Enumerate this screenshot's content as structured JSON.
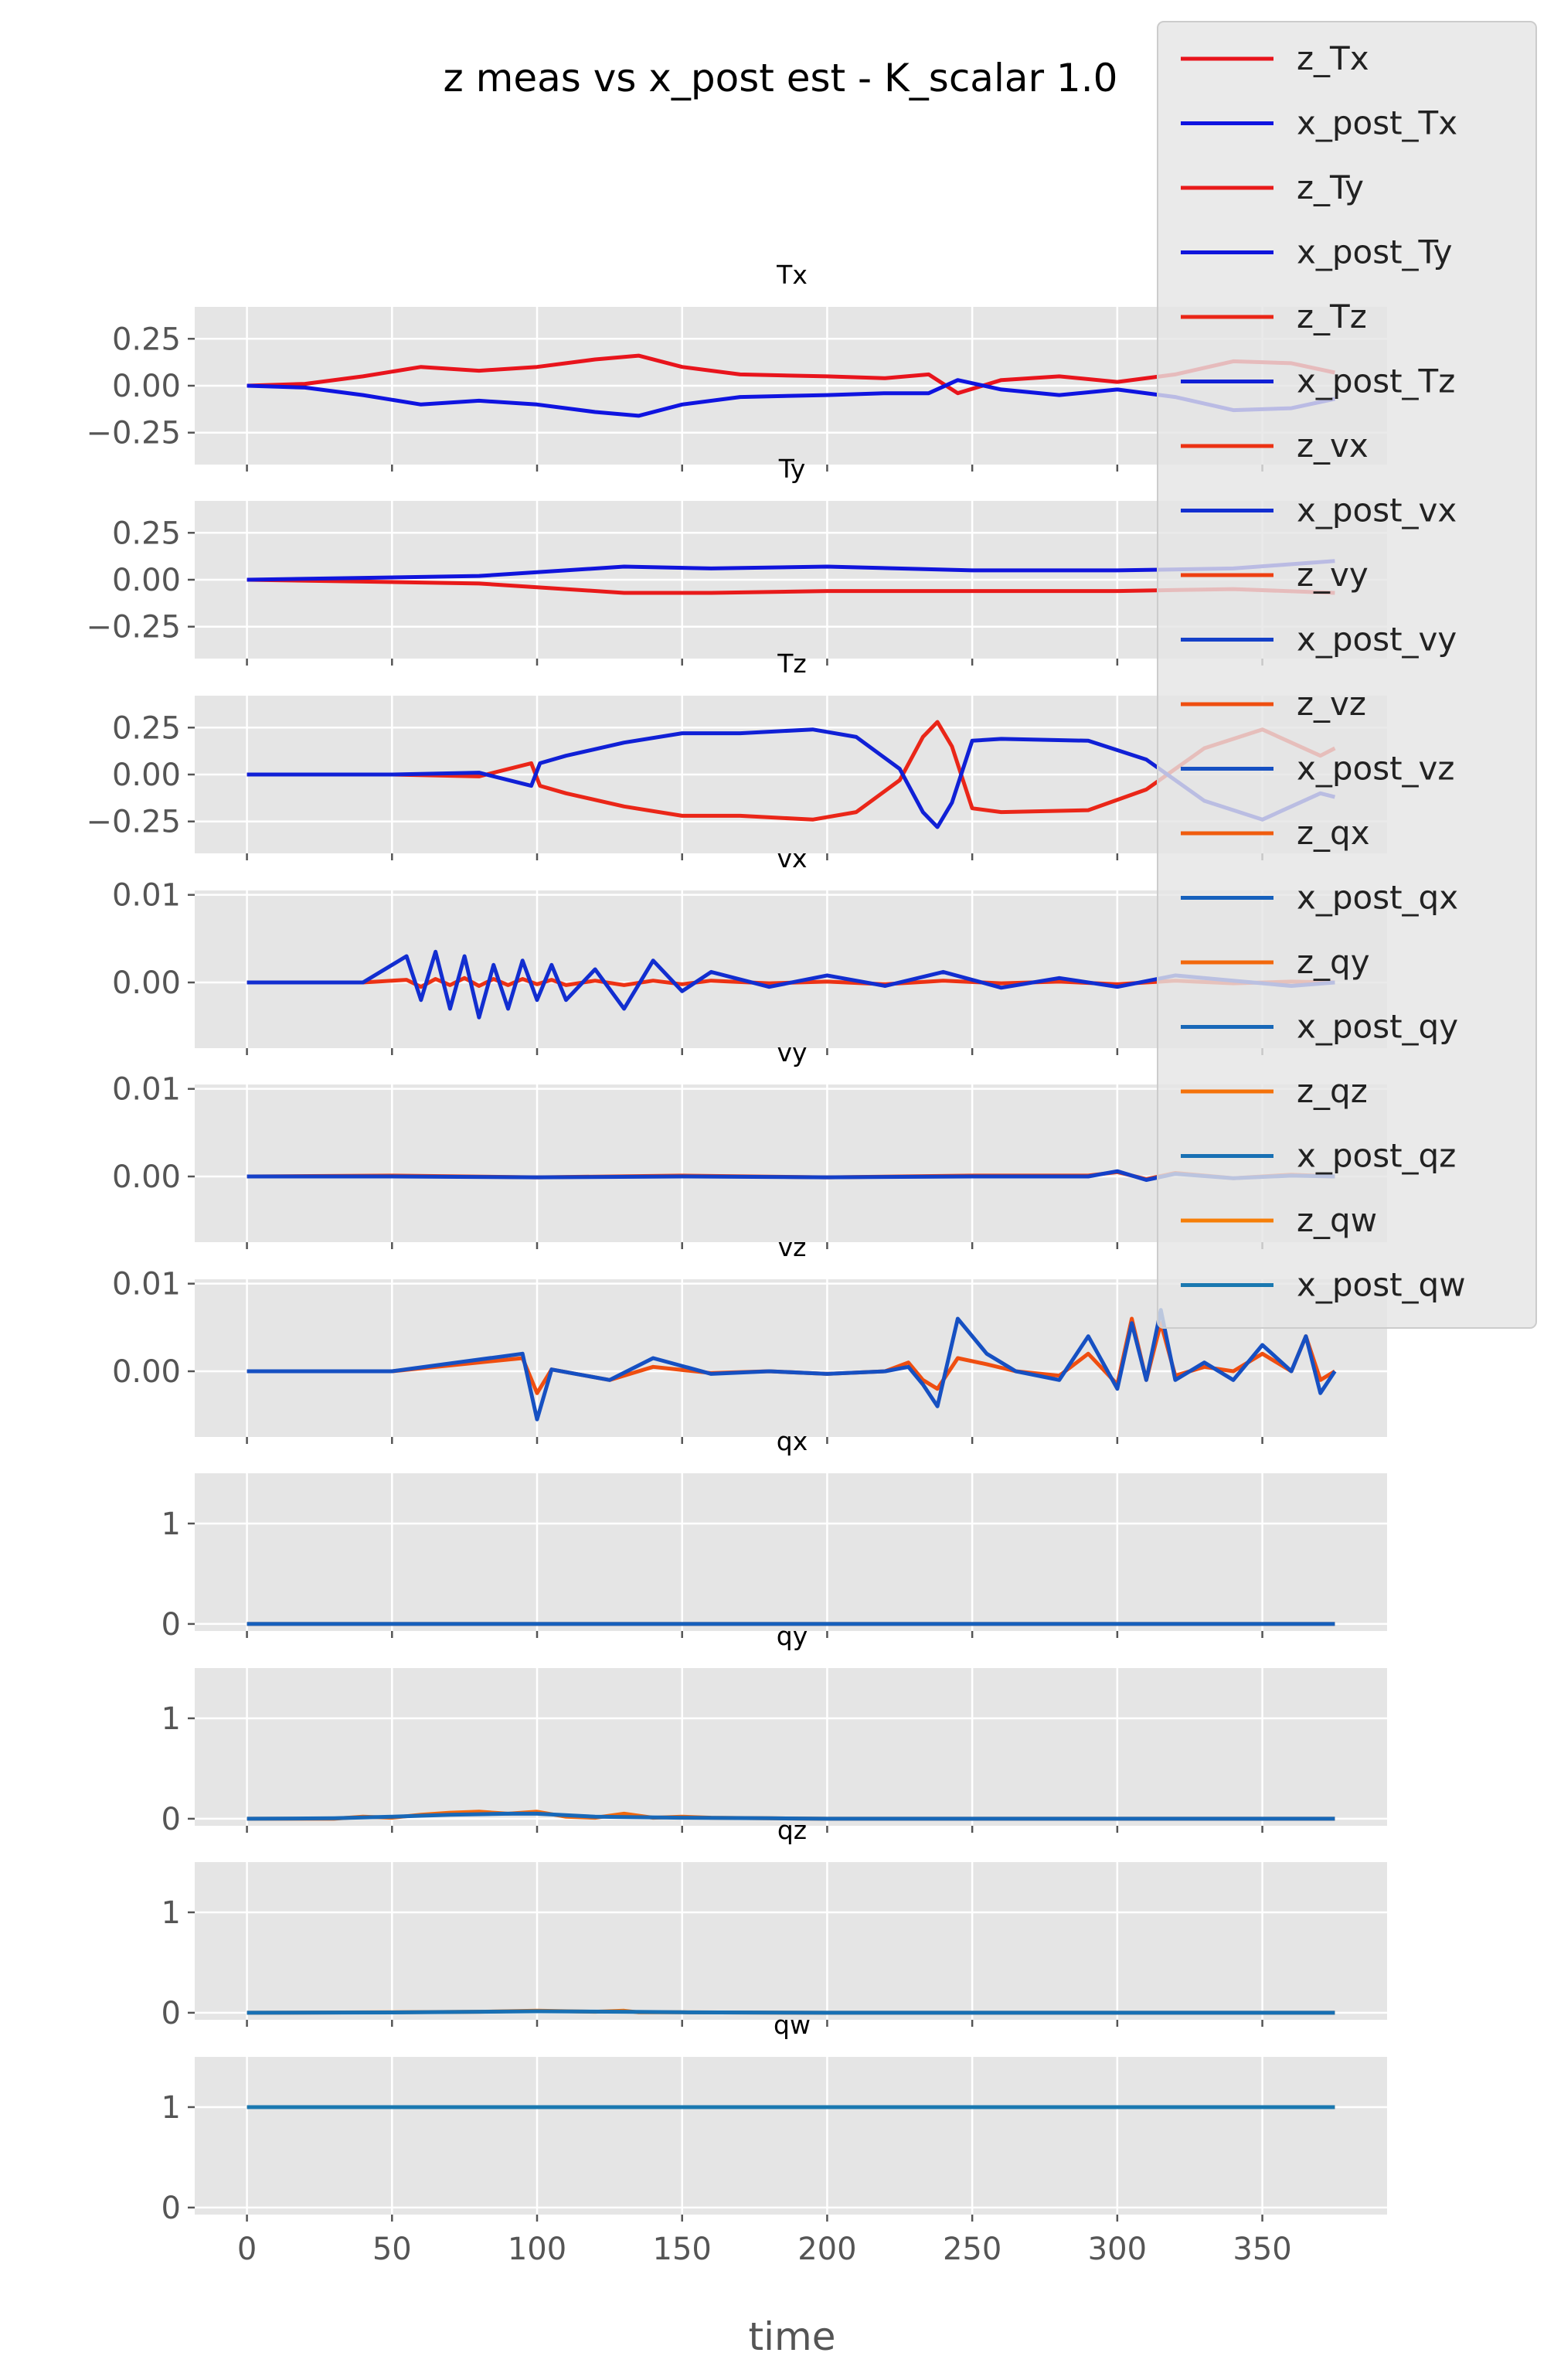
{
  "chart_data": {
    "type": "line",
    "title": "z meas vs x_post est - K_scalar 1.0",
    "xlabel": "time",
    "xlim": [
      -18,
      393
    ],
    "xticks": [
      0,
      50,
      100,
      150,
      200,
      250,
      300,
      350
    ],
    "grid": true,
    "legend_position": "top-right",
    "colors": {
      "background": "#e5e5e5",
      "grid": "#ffffff",
      "z_Tx": "#e8141c",
      "x_post_Tx": "#0f14e0",
      "z_Ty": "#e81a1a",
      "x_post_Ty": "#1014dc",
      "z_Tz": "#ea2618",
      "x_post_Tz": "#1020d6",
      "z_vx": "#ec3214",
      "x_post_vx": "#122ed0",
      "z_vy": "#ee4012",
      "x_post_vy": "#1440c8",
      "z_vz": "#ef4e10",
      "x_post_vz": "#1650c2",
      "z_qx": "#f05c0e",
      "x_post_qx": "#1660bc",
      "z_qy": "#f2680c",
      "x_post_qy": "#1868b8",
      "z_qz": "#f4720a",
      "x_post_qz": "#1870b4",
      "z_qw": "#f67e08",
      "x_post_qw": "#1a78b0"
    },
    "legend": [
      "z_Tx",
      "x_post_Tx",
      "z_Ty",
      "x_post_Ty",
      "z_Tz",
      "x_post_Tz",
      "z_vx",
      "x_post_vx",
      "z_vy",
      "x_post_vy",
      "z_vz",
      "x_post_vz",
      "z_qx",
      "x_post_qx",
      "z_qy",
      "x_post_qy",
      "z_qz",
      "x_post_qz",
      "z_qw",
      "x_post_qw"
    ],
    "panels": [
      {
        "title": "Tx",
        "ylim": [
          -0.42,
          0.42
        ],
        "yticks": [
          0.25,
          0.0,
          -0.25
        ],
        "ytick_labels": [
          "0.25",
          "0.00",
          "−0.25"
        ],
        "series": [
          {
            "name": "z_Tx",
            "x": [
              0,
              20,
              40,
              60,
              80,
              100,
              120,
              135,
              150,
              170,
              200,
              220,
              235,
              245,
              260,
              280,
              300,
              320,
              340,
              360,
              375
            ],
            "y": [
              0.0,
              0.01,
              0.05,
              0.1,
              0.08,
              0.1,
              0.14,
              0.16,
              0.1,
              0.06,
              0.05,
              0.04,
              0.06,
              -0.04,
              0.03,
              0.05,
              0.02,
              0.06,
              0.13,
              0.12,
              0.07
            ]
          },
          {
            "name": "x_post_Tx",
            "x": [
              0,
              20,
              40,
              60,
              80,
              100,
              120,
              135,
              150,
              170,
              200,
              220,
              235,
              245,
              260,
              280,
              300,
              320,
              340,
              360,
              375
            ],
            "y": [
              0.0,
              -0.01,
              -0.05,
              -0.1,
              -0.08,
              -0.1,
              -0.14,
              -0.16,
              -0.1,
              -0.06,
              -0.05,
              -0.04,
              -0.04,
              0.03,
              -0.02,
              -0.05,
              -0.02,
              -0.06,
              -0.13,
              -0.12,
              -0.07
            ]
          }
        ]
      },
      {
        "title": "Ty",
        "ylim": [
          -0.42,
          0.42
        ],
        "yticks": [
          0.25,
          0.0,
          -0.25
        ],
        "ytick_labels": [
          "0.25",
          "0.00",
          "−0.25"
        ],
        "series": [
          {
            "name": "z_Ty",
            "x": [
              0,
              40,
              80,
              100,
              130,
              160,
              200,
              250,
              300,
              340,
              375
            ],
            "y": [
              0.0,
              -0.01,
              -0.02,
              -0.04,
              -0.07,
              -0.07,
              -0.06,
              -0.06,
              -0.06,
              -0.05,
              -0.07
            ]
          },
          {
            "name": "x_post_Ty",
            "x": [
              0,
              40,
              80,
              100,
              130,
              160,
              200,
              250,
              300,
              340,
              375
            ],
            "y": [
              0.0,
              0.01,
              0.02,
              0.04,
              0.07,
              0.06,
              0.07,
              0.05,
              0.05,
              0.06,
              0.1
            ]
          }
        ]
      },
      {
        "title": "Tz",
        "ylim": [
          -0.42,
          0.42
        ],
        "yticks": [
          0.25,
          0.0,
          -0.25
        ],
        "ytick_labels": [
          "0.25",
          "0.00",
          "−0.25"
        ],
        "series": [
          {
            "name": "z_Tz",
            "x": [
              0,
              50,
              80,
              98,
              101,
              110,
              130,
              150,
              170,
              195,
              210,
              225,
              233,
              238,
              243,
              250,
              260,
              290,
              310,
              330,
              350,
              370,
              375
            ],
            "y": [
              0.0,
              0.0,
              -0.01,
              0.06,
              -0.06,
              -0.1,
              -0.17,
              -0.22,
              -0.22,
              -0.24,
              -0.2,
              -0.03,
              0.2,
              0.28,
              0.15,
              -0.18,
              -0.2,
              -0.19,
              -0.08,
              0.14,
              0.24,
              0.1,
              0.14
            ]
          },
          {
            "name": "x_post_Tz",
            "x": [
              0,
              50,
              80,
              98,
              101,
              110,
              130,
              150,
              170,
              195,
              210,
              225,
              233,
              238,
              243,
              250,
              260,
              290,
              310,
              330,
              350,
              370,
              375
            ],
            "y": [
              0.0,
              0.0,
              0.01,
              -0.06,
              0.06,
              0.1,
              0.17,
              0.22,
              0.22,
              0.24,
              0.2,
              0.03,
              -0.2,
              -0.28,
              -0.15,
              0.18,
              0.19,
              0.18,
              0.08,
              -0.14,
              -0.24,
              -0.1,
              -0.12
            ]
          }
        ]
      },
      {
        "title": "vx",
        "ylim": [
          -0.0075,
          0.0105
        ],
        "yticks": [
          0.01,
          0.0
        ],
        "ytick_labels": [
          "0.01",
          "0.00"
        ],
        "series": [
          {
            "name": "z_vx",
            "x": [
              0,
              40,
              55,
              60,
              65,
              70,
              75,
              80,
              85,
              90,
              95,
              100,
              105,
              110,
              120,
              130,
              140,
              150,
              160,
              180,
              200,
              220,
              240,
              260,
              280,
              300,
              320,
              340,
              360,
              375
            ],
            "y": [
              0.0,
              0.0,
              0.0003,
              -0.0005,
              0.0004,
              -0.0003,
              0.0005,
              -0.0004,
              0.0004,
              -0.0003,
              0.0004,
              -0.0002,
              0.0003,
              -0.0003,
              0.0002,
              -0.0003,
              0.0002,
              -0.0002,
              0.0002,
              -0.0001,
              0.0001,
              -0.0002,
              0.0002,
              -0.0001,
              0.0001,
              -0.0002,
              0.0002,
              -0.0001,
              0.0001,
              0.0
            ]
          },
          {
            "name": "x_post_vx",
            "x": [
              0,
              40,
              55,
              60,
              65,
              70,
              75,
              80,
              85,
              90,
              95,
              100,
              105,
              110,
              120,
              130,
              140,
              150,
              160,
              180,
              200,
              220,
              240,
              260,
              280,
              300,
              320,
              340,
              360,
              375
            ],
            "y": [
              0.0,
              0.0,
              0.003,
              -0.002,
              0.0035,
              -0.003,
              0.003,
              -0.004,
              0.002,
              -0.003,
              0.0025,
              -0.002,
              0.002,
              -0.002,
              0.0015,
              -0.003,
              0.0025,
              -0.001,
              0.0012,
              -0.0005,
              0.0008,
              -0.0004,
              0.0012,
              -0.0006,
              0.0005,
              -0.0005,
              0.0008,
              0.0002,
              -0.0004,
              0.0
            ]
          }
        ]
      },
      {
        "title": "vy",
        "ylim": [
          -0.0075,
          0.0105
        ],
        "yticks": [
          0.01,
          0.0
        ],
        "ytick_labels": [
          "0.01",
          "0.00"
        ],
        "series": [
          {
            "name": "z_vy",
            "x": [
              0,
              50,
              100,
              150,
              200,
              250,
              290,
              300,
              310,
              320,
              340,
              360,
              375
            ],
            "y": [
              0.0,
              0.0001,
              -0.0001,
              0.0001,
              -0.0001,
              0.0001,
              0.0001,
              0.0005,
              -0.0003,
              0.0004,
              -0.0002,
              0.0002,
              0.0
            ]
          },
          {
            "name": "x_post_vy",
            "x": [
              0,
              50,
              100,
              150,
              200,
              250,
              290,
              300,
              310,
              320,
              340,
              360,
              375
            ],
            "y": [
              0.0,
              0.0,
              -0.0001,
              0.0,
              -0.0001,
              0.0,
              0.0,
              0.0006,
              -0.0004,
              0.0003,
              -0.0002,
              0.0001,
              0.0
            ]
          }
        ]
      },
      {
        "title": "vz",
        "ylim": [
          -0.0075,
          0.0105
        ],
        "yticks": [
          0.01,
          0.0
        ],
        "ytick_labels": [
          "0.01",
          "0.00"
        ],
        "series": [
          {
            "name": "z_vz",
            "x": [
              0,
              50,
              95,
              100,
              105,
              125,
              140,
              160,
              180,
              200,
              220,
              228,
              233,
              238,
              245,
              255,
              265,
              280,
              290,
              300,
              305,
              310,
              315,
              320,
              330,
              340,
              350,
              360,
              365,
              370,
              375
            ],
            "y": [
              0.0,
              0.0,
              0.0015,
              -0.0025,
              0.0002,
              -0.001,
              0.0005,
              -0.0002,
              0.0,
              -0.0003,
              0.0,
              0.001,
              -0.001,
              -0.002,
              0.0015,
              0.0008,
              0.0,
              -0.0005,
              0.002,
              -0.0015,
              0.006,
              -0.001,
              0.0055,
              -0.0005,
              0.0005,
              0.0,
              0.002,
              0.0,
              0.004,
              -0.001,
              0.0
            ]
          },
          {
            "name": "x_post_vz",
            "x": [
              0,
              50,
              95,
              100,
              105,
              125,
              140,
              160,
              180,
              200,
              220,
              228,
              233,
              238,
              245,
              255,
              265,
              280,
              290,
              300,
              305,
              310,
              315,
              320,
              330,
              340,
              350,
              360,
              365,
              370,
              375
            ],
            "y": [
              0.0,
              0.0,
              0.002,
              -0.0055,
              0.0002,
              -0.001,
              0.0015,
              -0.0003,
              0.0,
              -0.0003,
              0.0,
              0.0005,
              -0.0015,
              -0.004,
              0.006,
              0.002,
              0.0,
              -0.001,
              0.004,
              -0.002,
              0.0055,
              -0.001,
              0.007,
              -0.001,
              0.001,
              -0.001,
              0.003,
              0.0,
              0.004,
              -0.0025,
              0.0
            ]
          }
        ]
      },
      {
        "title": "qx",
        "ylim": [
          -0.07,
          1.5
        ],
        "yticks": [
          1,
          0
        ],
        "ytick_labels": [
          "1",
          "0"
        ],
        "series": [
          {
            "name": "z_qx",
            "x": [
              0,
              375
            ],
            "y": [
              0.0,
              0.0
            ]
          },
          {
            "name": "x_post_qx",
            "x": [
              0,
              375
            ],
            "y": [
              0.0,
              0.0
            ]
          }
        ]
      },
      {
        "title": "qy",
        "ylim": [
          -0.07,
          1.5
        ],
        "yticks": [
          1,
          0
        ],
        "ytick_labels": [
          "1",
          "0"
        ],
        "series": [
          {
            "name": "z_qy",
            "x": [
              0,
              30,
              40,
              50,
              60,
              70,
              80,
              90,
              100,
              110,
              120,
              130,
              140,
              150,
              160,
              180,
              200,
              250,
              300,
              375
            ],
            "y": [
              0.0,
              0.0,
              0.02,
              0.01,
              0.04,
              0.06,
              0.07,
              0.05,
              0.07,
              0.02,
              0.01,
              0.05,
              0.01,
              0.02,
              0.01,
              0.005,
              0.0,
              0.0,
              0.0,
              0.0
            ]
          },
          {
            "name": "x_post_qy",
            "x": [
              0,
              30,
              50,
              70,
              90,
              100,
              120,
              150,
              180,
              200,
              250,
              300,
              375
            ],
            "y": [
              0.0,
              0.005,
              0.02,
              0.04,
              0.05,
              0.05,
              0.02,
              0.01,
              0.005,
              0.0,
              0.0,
              0.0,
              0.0
            ]
          }
        ]
      },
      {
        "title": "qz",
        "ylim": [
          -0.07,
          1.5
        ],
        "yticks": [
          1,
          0
        ],
        "ytick_labels": [
          "1",
          "0"
        ],
        "series": [
          {
            "name": "z_qz",
            "x": [
              0,
              50,
              80,
              100,
              120,
              130,
              135,
              150,
              200,
              375
            ],
            "y": [
              0.0,
              0.005,
              0.01,
              0.02,
              0.01,
              0.02,
              0.005,
              0.005,
              0.0,
              0.0
            ]
          },
          {
            "name": "x_post_qz",
            "x": [
              0,
              50,
              80,
              100,
              130,
              150,
              200,
              375
            ],
            "y": [
              0.0,
              0.003,
              0.01,
              0.015,
              0.01,
              0.005,
              0.0,
              0.0
            ]
          }
        ]
      },
      {
        "title": "qw",
        "ylim": [
          -0.07,
          1.5
        ],
        "yticks": [
          1,
          0
        ],
        "ytick_labels": [
          "1",
          "0"
        ],
        "series": [
          {
            "name": "z_qw",
            "x": [
              0,
              100,
              200,
              375
            ],
            "y": [
              1.0,
              1.0,
              1.0,
              1.0
            ]
          },
          {
            "name": "x_post_qw",
            "x": [
              0,
              100,
              200,
              375
            ],
            "y": [
              1.0,
              1.0,
              1.0,
              1.0
            ]
          }
        ]
      }
    ]
  }
}
